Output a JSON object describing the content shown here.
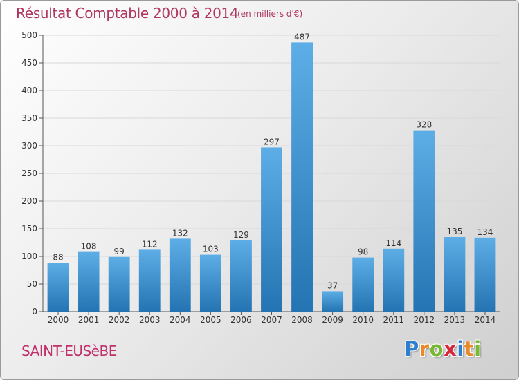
{
  "title": "Résultat Comptable 2000 à 2014",
  "subtitle": "(en milliers d'€)",
  "city": "SAINT-EUSèBE",
  "logo": {
    "text": "Proxiti",
    "letters": [
      {
        "ch": "P",
        "color": "#2f7fd0"
      },
      {
        "ch": "r",
        "color": "#e8892a"
      },
      {
        "ch": "o",
        "color": "#79b734"
      },
      {
        "ch": "x",
        "color": "#d8283a"
      },
      {
        "ch": "i",
        "color": "#2f7fd0"
      },
      {
        "ch": "t",
        "color": "#e8892a"
      },
      {
        "ch": "i",
        "color": "#79b734"
      }
    ]
  },
  "colors": {
    "bar_top": "#5dade6",
    "bar_bottom": "#2474b3",
    "title": "#b0375f",
    "grid": "#d8d8d8"
  },
  "chart_data": {
    "type": "bar",
    "categories": [
      "2000",
      "2001",
      "2002",
      "2003",
      "2004",
      "2005",
      "2006",
      "2007",
      "2008",
      "2009",
      "2010",
      "2011",
      "2012",
      "2013",
      "2014"
    ],
    "values": [
      88,
      108,
      99,
      112,
      132,
      103,
      129,
      297,
      487,
      37,
      98,
      114,
      328,
      135,
      134
    ],
    "title": "Résultat Comptable 2000 à 2014",
    "subtitle": "(en milliers d'€)",
    "ylim": [
      0,
      500
    ],
    "yticks": [
      0,
      50,
      100,
      150,
      200,
      250,
      300,
      350,
      400,
      450,
      500
    ],
    "grid": true
  }
}
